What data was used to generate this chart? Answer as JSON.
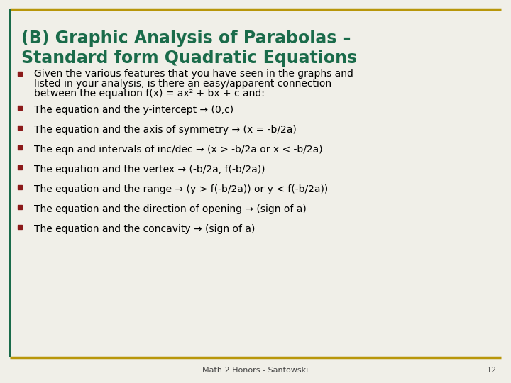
{
  "title_line1": "(B) Graphic Analysis of Parabolas –",
  "title_line2": "Standard form Quadratic Equations",
  "title_color": "#1a6b4a",
  "background_color": "#f0efe8",
  "border_color": "#b8960a",
  "footer_text": "Math 2 Honors - Santowski",
  "page_number": "12",
  "bullet_color": "#8B1a1a",
  "text_color": "#000000",
  "intro_text_line1": "Given the various features that you have seen in the graphs and",
  "intro_text_line2": "listed in your analysis, is there an easy/apparent connection",
  "intro_text_line3": "between the equation f(x) = ax² + bx + c and:",
  "bullets": [
    "The equation and the y-intercept → (0,c)",
    "The equation and the axis of symmetry → (x = -b/2a)",
    "The eqn and intervals of inc/dec → (x > -b/2a or x < -b/2a)",
    "The equation and the vertex → (-b/2a, f(-b/2a))",
    "The equation and the range → (y > f(-b/2a)) or y < f(-b/2a))",
    "The equation and the direction of opening → (sign of a)",
    "The equation and the concavity → (sign of a)"
  ],
  "title_fontsize": 17,
  "body_fontsize": 10,
  "footer_fontsize": 8
}
